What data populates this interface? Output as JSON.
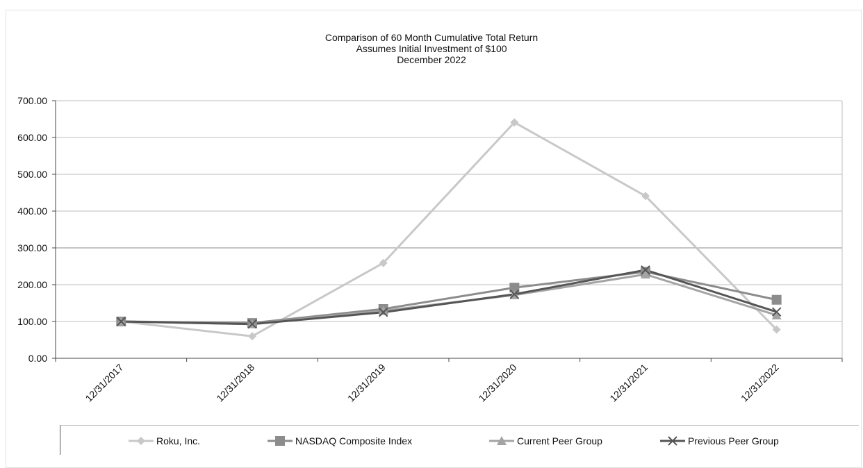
{
  "chart_data": {
    "type": "line",
    "title_lines": [
      "Comparison of 60 Month Cumulative Total Return",
      "Assumes Initial Investment of $100",
      "December 2022"
    ],
    "xlabel": "",
    "ylabel": "",
    "categories": [
      "12/31/2017",
      "12/31/2018",
      "12/31/2019",
      "12/31/2020",
      "12/31/2021",
      "12/31/2022"
    ],
    "ylim": [
      0,
      700
    ],
    "yticks": [
      "0.00",
      "100.00",
      "200.00",
      "300.00",
      "400.00",
      "500.00",
      "600.00",
      "700.00"
    ],
    "grid": true,
    "legend_position": "bottom",
    "series": [
      {
        "name": "Roku, Inc.",
        "marker": "diamond",
        "color": "#c8c8c8",
        "values": [
          100,
          60,
          259,
          641,
          441,
          78
        ]
      },
      {
        "name": "NASDAQ Composite Index",
        "marker": "square",
        "color": "#8c8c8c",
        "values": [
          100,
          96,
          134,
          192,
          235,
          159
        ]
      },
      {
        "name": "Current Peer Group",
        "marker": "triangle",
        "color": "#a4a4a4",
        "values": [
          100,
          93,
          129,
          172,
          228,
          117
        ]
      },
      {
        "name": "Previous Peer Group",
        "marker": "x",
        "color": "#555555",
        "values": [
          100,
          93,
          125,
          174,
          240,
          126
        ]
      }
    ]
  }
}
